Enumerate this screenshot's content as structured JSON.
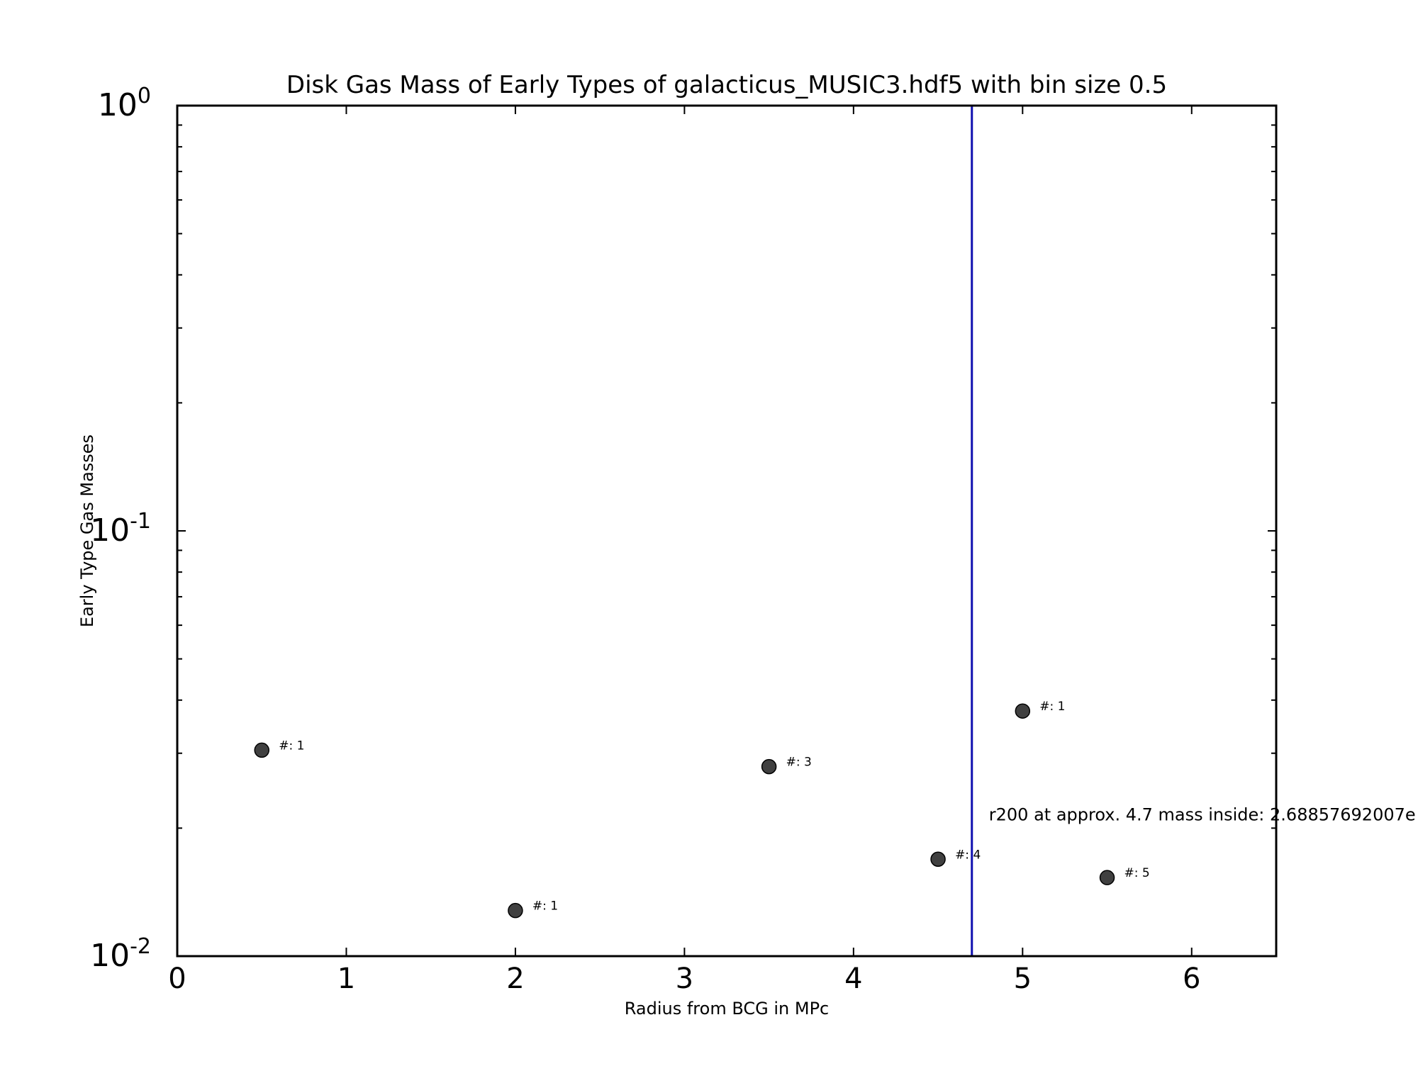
{
  "chart_data": {
    "type": "scatter",
    "title": "Disk Gas Mass of Early Types of galacticus_MUSIC3.hdf5 with bin size 0.5",
    "xlabel": "Radius from BCG in MPc",
    "ylabel": "Early Type Gas Masses",
    "xlim": [
      0,
      6.5
    ],
    "ylim": [
      0.01,
      1
    ],
    "yscale": "log",
    "x_ticks": [
      0,
      1,
      2,
      3,
      4,
      5,
      6
    ],
    "x_tick_labels": [
      "0",
      "1",
      "2",
      "3",
      "4",
      "5",
      "6"
    ],
    "y_ticks": [
      0.01,
      0.1,
      1
    ],
    "y_tick_labels": [
      {
        "base": "10",
        "exp": "-2"
      },
      {
        "base": "10",
        "exp": "-1"
      },
      {
        "base": "10",
        "exp": "0"
      }
    ],
    "grid": false,
    "series": [
      {
        "x": [
          0.5,
          2.0,
          3.5,
          4.5,
          5.0,
          5.5
        ],
        "y": [
          0.0305,
          0.0128,
          0.0279,
          0.0169,
          0.0377,
          0.0153
        ],
        "labels": [
          "#: 1",
          "#: 1",
          "#: 3",
          "#: 4",
          "#: 1",
          "#: 5"
        ],
        "color": "#404040"
      }
    ],
    "vline": {
      "x": 4.7,
      "color": "#1010b0",
      "label": "r200 at approx. 4.7 mass inside: 2.68857692007e",
      "label_y": 0.02
    }
  }
}
